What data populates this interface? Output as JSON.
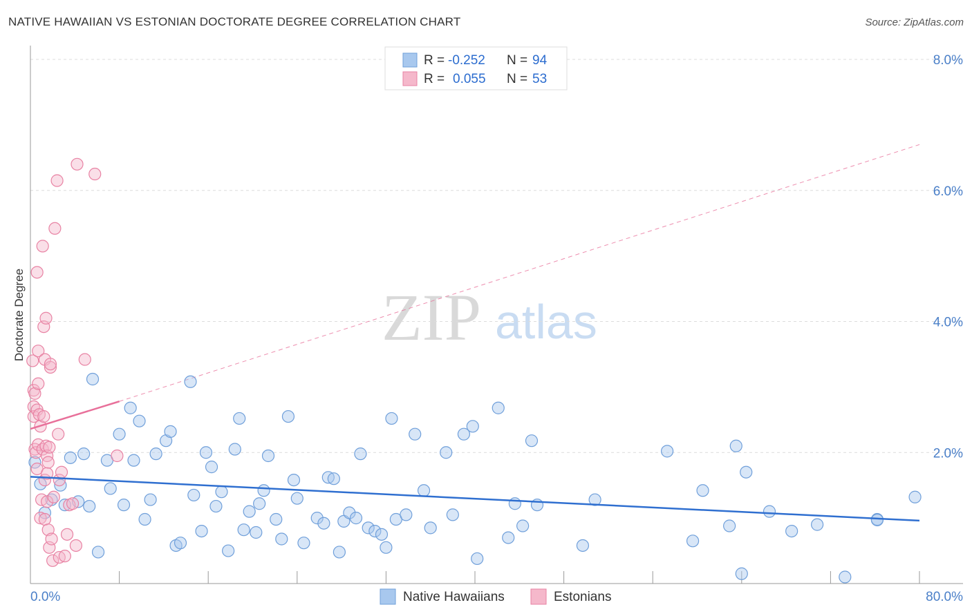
{
  "title": "NATIVE HAWAIIAN VS ESTONIAN DOCTORATE DEGREE CORRELATION CHART",
  "source": "Source: ZipAtlas.com",
  "watermark": {
    "zip": "ZIP",
    "atlas": "atlas"
  },
  "legend": {
    "rows": [
      {
        "r_label": "R =",
        "r_value": "-0.252",
        "n_label": "N =",
        "n_value": "94"
      },
      {
        "r_label": "R =",
        "r_value": "0.055",
        "n_label": "N =",
        "n_value": "53"
      }
    ]
  },
  "bottom_legend": [
    "Native Hawaiians",
    "Estonians"
  ],
  "colors": {
    "blue_fill": "#a8c8ee",
    "blue_stroke": "#6f9fda",
    "blue_line": "#2f6fd0",
    "pink_fill": "#f5b8cb",
    "pink_stroke": "#e882a3",
    "pink_line": "#e8709a",
    "tick_label": "#4a7fc8"
  },
  "chart_data": {
    "type": "scatter",
    "title": "NATIVE HAWAIIAN VS ESTONIAN DOCTORATE DEGREE CORRELATION CHART",
    "xlabel": "",
    "ylabel": "Doctorate Degree",
    "xlim": [
      0,
      80
    ],
    "ylim": [
      0,
      8
    ],
    "x_tick_labels": [
      "0.0%",
      "80.0%"
    ],
    "y_ticks": [
      2,
      4,
      6,
      8
    ],
    "y_tick_labels": [
      "2.0%",
      "4.0%",
      "6.0%",
      "8.0%"
    ],
    "grid": "horizontal dashed",
    "legend_position": "top-center",
    "series": [
      {
        "name": "Native Hawaiians",
        "color": "#a8c8ee",
        "trend": {
          "x": [
            0,
            80
          ],
          "y": [
            1.63,
            0.96
          ]
        },
        "points": [
          [
            0.4,
            1.85
          ],
          [
            0.9,
            1.52
          ],
          [
            1.3,
            1.08
          ],
          [
            1.9,
            1.28
          ],
          [
            2.7,
            1.5
          ],
          [
            3.1,
            1.2
          ],
          [
            3.6,
            1.92
          ],
          [
            4.3,
            1.25
          ],
          [
            4.8,
            1.98
          ],
          [
            5.3,
            1.18
          ],
          [
            5.6,
            3.12
          ],
          [
            6.1,
            0.48
          ],
          [
            6.9,
            1.88
          ],
          [
            7.2,
            1.45
          ],
          [
            8.0,
            2.28
          ],
          [
            8.4,
            1.2
          ],
          [
            9.0,
            2.68
          ],
          [
            9.3,
            1.88
          ],
          [
            9.8,
            2.48
          ],
          [
            10.3,
            0.98
          ],
          [
            10.8,
            1.28
          ],
          [
            11.3,
            1.98
          ],
          [
            12.2,
            2.18
          ],
          [
            12.6,
            2.32
          ],
          [
            13.1,
            0.58
          ],
          [
            13.5,
            0.62
          ],
          [
            14.4,
            3.08
          ],
          [
            14.7,
            1.35
          ],
          [
            15.4,
            0.8
          ],
          [
            15.8,
            2.0
          ],
          [
            16.3,
            1.78
          ],
          [
            16.7,
            1.18
          ],
          [
            17.2,
            1.4
          ],
          [
            17.8,
            0.5
          ],
          [
            18.4,
            2.05
          ],
          [
            18.8,
            2.52
          ],
          [
            19.2,
            0.82
          ],
          [
            19.7,
            1.1
          ],
          [
            20.3,
            0.78
          ],
          [
            20.6,
            1.22
          ],
          [
            21.0,
            1.42
          ],
          [
            21.4,
            1.95
          ],
          [
            22.1,
            0.98
          ],
          [
            22.6,
            0.68
          ],
          [
            23.2,
            2.55
          ],
          [
            23.7,
            1.58
          ],
          [
            24.0,
            1.3
          ],
          [
            24.6,
            0.62
          ],
          [
            25.8,
            1.0
          ],
          [
            26.4,
            0.92
          ],
          [
            26.8,
            1.62
          ],
          [
            27.3,
            1.6
          ],
          [
            27.8,
            0.48
          ],
          [
            28.2,
            0.95
          ],
          [
            28.7,
            1.08
          ],
          [
            29.3,
            1.0
          ],
          [
            29.7,
            1.98
          ],
          [
            30.4,
            0.85
          ],
          [
            31.0,
            0.8
          ],
          [
            31.6,
            0.75
          ],
          [
            32.0,
            0.55
          ],
          [
            32.5,
            2.52
          ],
          [
            32.9,
            0.98
          ],
          [
            33.8,
            1.05
          ],
          [
            34.6,
            2.28
          ],
          [
            35.4,
            1.42
          ],
          [
            36.0,
            0.85
          ],
          [
            37.4,
            2.0
          ],
          [
            38.0,
            1.05
          ],
          [
            39.0,
            2.28
          ],
          [
            39.8,
            2.4
          ],
          [
            40.2,
            0.38
          ],
          [
            42.1,
            2.68
          ],
          [
            43.0,
            0.7
          ],
          [
            43.6,
            1.22
          ],
          [
            44.3,
            0.88
          ],
          [
            45.1,
            2.18
          ],
          [
            45.6,
            1.2
          ],
          [
            49.7,
            0.58
          ],
          [
            50.8,
            1.28
          ],
          [
            57.3,
            2.02
          ],
          [
            59.6,
            0.65
          ],
          [
            60.5,
            1.42
          ],
          [
            62.9,
            0.88
          ],
          [
            63.5,
            2.1
          ],
          [
            64.0,
            0.15
          ],
          [
            64.4,
            1.7
          ],
          [
            66.5,
            1.1
          ],
          [
            68.5,
            0.8
          ],
          [
            70.8,
            0.9
          ],
          [
            73.3,
            0.1
          ],
          [
            76.2,
            0.98
          ],
          [
            79.6,
            1.32
          ],
          [
            76.2,
            0.97
          ]
        ]
      },
      {
        "name": "Estonians",
        "color": "#f5b8cb",
        "trend": {
          "x": [
            0,
            8
          ],
          "y": [
            2.36,
            2.78
          ]
        },
        "trend_extension": {
          "x": [
            8,
            80
          ],
          "y": [
            2.78,
            6.7
          ]
        },
        "points": [
          [
            0.2,
            3.4
          ],
          [
            0.3,
            2.95
          ],
          [
            0.3,
            2.7
          ],
          [
            0.3,
            2.55
          ],
          [
            0.4,
            2.9
          ],
          [
            0.4,
            2.05
          ],
          [
            0.5,
            2.0
          ],
          [
            0.6,
            1.75
          ],
          [
            0.6,
            2.65
          ],
          [
            0.7,
            3.05
          ],
          [
            0.7,
            2.12
          ],
          [
            0.6,
            4.75
          ],
          [
            0.7,
            3.55
          ],
          [
            0.8,
            2.58
          ],
          [
            0.9,
            1.0
          ],
          [
            0.9,
            2.4
          ],
          [
            1.0,
            1.28
          ],
          [
            1.1,
            5.15
          ],
          [
            1.1,
            2.05
          ],
          [
            1.2,
            3.92
          ],
          [
            1.2,
            2.55
          ],
          [
            1.3,
            3.42
          ],
          [
            1.3,
            1.58
          ],
          [
            1.3,
            0.98
          ],
          [
            1.4,
            4.05
          ],
          [
            1.4,
            2.1
          ],
          [
            1.5,
            1.95
          ],
          [
            1.5,
            1.68
          ],
          [
            1.5,
            1.25
          ],
          [
            1.6,
            0.82
          ],
          [
            1.6,
            1.85
          ],
          [
            1.7,
            0.55
          ],
          [
            1.7,
            2.08
          ],
          [
            1.8,
            3.3
          ],
          [
            1.8,
            3.35
          ],
          [
            1.9,
            0.68
          ],
          [
            2.0,
            0.35
          ],
          [
            2.1,
            1.32
          ],
          [
            2.2,
            5.42
          ],
          [
            2.4,
            6.15
          ],
          [
            2.5,
            2.28
          ],
          [
            2.6,
            1.58
          ],
          [
            2.6,
            0.4
          ],
          [
            2.8,
            1.7
          ],
          [
            3.1,
            0.42
          ],
          [
            3.3,
            0.75
          ],
          [
            3.5,
            1.2
          ],
          [
            3.8,
            1.22
          ],
          [
            4.1,
            0.58
          ],
          [
            4.2,
            6.4
          ],
          [
            4.9,
            3.42
          ],
          [
            5.8,
            6.25
          ],
          [
            7.8,
            1.95
          ]
        ]
      }
    ]
  }
}
